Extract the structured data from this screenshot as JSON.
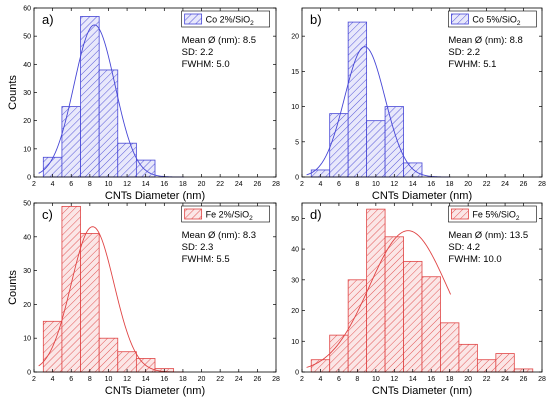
{
  "chart_data": [
    {
      "type": "histogram",
      "panel_label": "a)",
      "legend_main": "Co 2%/SiO",
      "legend_sub": "2",
      "stats": [
        "Mean Ø (nm): 8.5",
        "SD: 2.2",
        "FWHM: 5.0"
      ],
      "color": "#4747d6",
      "fill": "#e8e8fb",
      "xlabel": "CNTs Diameter (nm)",
      "ylabel": "Counts",
      "xlim": [
        2,
        28
      ],
      "ylim": [
        0,
        60
      ],
      "xticks": [
        2,
        4,
        6,
        8,
        10,
        12,
        14,
        16,
        18,
        20,
        22,
        24,
        26,
        28
      ],
      "yticks": [
        0,
        10,
        20,
        30,
        40,
        50,
        60
      ],
      "bin_width": 2,
      "bins": [
        {
          "x0": 3,
          "x1": 5,
          "count": 7
        },
        {
          "x0": 5,
          "x1": 7,
          "count": 25
        },
        {
          "x0": 7,
          "x1": 9,
          "count": 57
        },
        {
          "x0": 9,
          "x1": 11,
          "count": 38
        },
        {
          "x0": 11,
          "x1": 13,
          "count": 12
        },
        {
          "x0": 13,
          "x1": 15,
          "count": 6
        }
      ],
      "fit": {
        "type": "gaussian",
        "mean": 8.5,
        "sd": 2.2,
        "peak": 54
      }
    },
    {
      "type": "histogram",
      "panel_label": "b)",
      "legend_main": "Co 5%/SiO",
      "legend_sub": "2",
      "stats": [
        "Mean Ø (nm): 8.8",
        "SD: 2.2",
        "FWHM: 5.1"
      ],
      "color": "#4747d6",
      "fill": "#e8e8fb",
      "xlabel": "CNTs Diameter (nm)",
      "ylabel": "",
      "xlim": [
        2,
        28
      ],
      "ylim": [
        0,
        24
      ],
      "xticks": [
        2,
        4,
        6,
        8,
        10,
        12,
        14,
        16,
        18,
        20,
        22,
        24,
        26,
        28
      ],
      "yticks": [
        0,
        5,
        10,
        15,
        20
      ],
      "bin_width": 2,
      "bins": [
        {
          "x0": 3,
          "x1": 5,
          "count": 1
        },
        {
          "x0": 5,
          "x1": 7,
          "count": 9
        },
        {
          "x0": 7,
          "x1": 9,
          "count": 22
        },
        {
          "x0": 9,
          "x1": 11,
          "count": 8
        },
        {
          "x0": 11,
          "x1": 13,
          "count": 10
        },
        {
          "x0": 13,
          "x1": 15,
          "count": 2
        }
      ],
      "fit": {
        "type": "gaussian",
        "mean": 8.8,
        "sd": 2.2,
        "peak": 18.5
      }
    },
    {
      "type": "histogram",
      "panel_label": "c)",
      "legend_main": "Fe 2%/SiO",
      "legend_sub": "2",
      "stats": [
        "Mean Ø (nm): 8.3",
        "SD: 2.3",
        "FWHM: 5.5"
      ],
      "color": "#e04545",
      "fill": "#fbe6e6",
      "xlabel": "CNTs Diameter (nm)",
      "ylabel": "Counts",
      "xlim": [
        2,
        28
      ],
      "ylim": [
        0,
        50
      ],
      "xticks": [
        2,
        4,
        6,
        8,
        10,
        12,
        14,
        16,
        18,
        20,
        22,
        24,
        26,
        28
      ],
      "yticks": [
        0,
        10,
        20,
        30,
        40,
        50
      ],
      "bin_width": 2,
      "bins": [
        {
          "x0": 3,
          "x1": 5,
          "count": 15
        },
        {
          "x0": 5,
          "x1": 7,
          "count": 49
        },
        {
          "x0": 7,
          "x1": 9,
          "count": 41
        },
        {
          "x0": 9,
          "x1": 11,
          "count": 10
        },
        {
          "x0": 11,
          "x1": 13,
          "count": 6
        },
        {
          "x0": 13,
          "x1": 15,
          "count": 4
        },
        {
          "x0": 15,
          "x1": 17,
          "count": 1
        }
      ],
      "fit": {
        "type": "gaussian",
        "mean": 8.3,
        "sd": 2.3,
        "peak": 43
      }
    },
    {
      "type": "histogram",
      "panel_label": "d)",
      "legend_main": "Fe 5%/SiO",
      "legend_sub": "2",
      "stats": [
        "Mean Ø (nm): 13.5",
        "SD: 4.2",
        "FWHM: 10.0"
      ],
      "color": "#e04545",
      "fill": "#fbe6e6",
      "xlabel": "CNTs Diameter (nm)",
      "ylabel": "",
      "xlim": [
        2,
        28
      ],
      "ylim": [
        0,
        55
      ],
      "xticks": [
        2,
        4,
        6,
        8,
        10,
        12,
        14,
        16,
        18,
        20,
        22,
        24,
        26,
        28
      ],
      "yticks": [
        0,
        10,
        20,
        30,
        40,
        50
      ],
      "bin_width": 2,
      "bins": [
        {
          "x0": 3,
          "x1": 5,
          "count": 4
        },
        {
          "x0": 5,
          "x1": 7,
          "count": 12
        },
        {
          "x0": 7,
          "x1": 9,
          "count": 30
        },
        {
          "x0": 9,
          "x1": 11,
          "count": 53
        },
        {
          "x0": 11,
          "x1": 13,
          "count": 44
        },
        {
          "x0": 13,
          "x1": 15,
          "count": 36
        },
        {
          "x0": 15,
          "x1": 17,
          "count": 31
        },
        {
          "x0": 17,
          "x1": 19,
          "count": 16
        },
        {
          "x0": 19,
          "x1": 21,
          "count": 9
        },
        {
          "x0": 21,
          "x1": 23,
          "count": 4
        },
        {
          "x0": 23,
          "x1": 25,
          "count": 6
        },
        {
          "x0": 25,
          "x1": 27,
          "count": 1
        }
      ],
      "fit": {
        "type": "gaussian",
        "mean": 13.5,
        "sd": 4.2,
        "peak": 46
      }
    }
  ]
}
